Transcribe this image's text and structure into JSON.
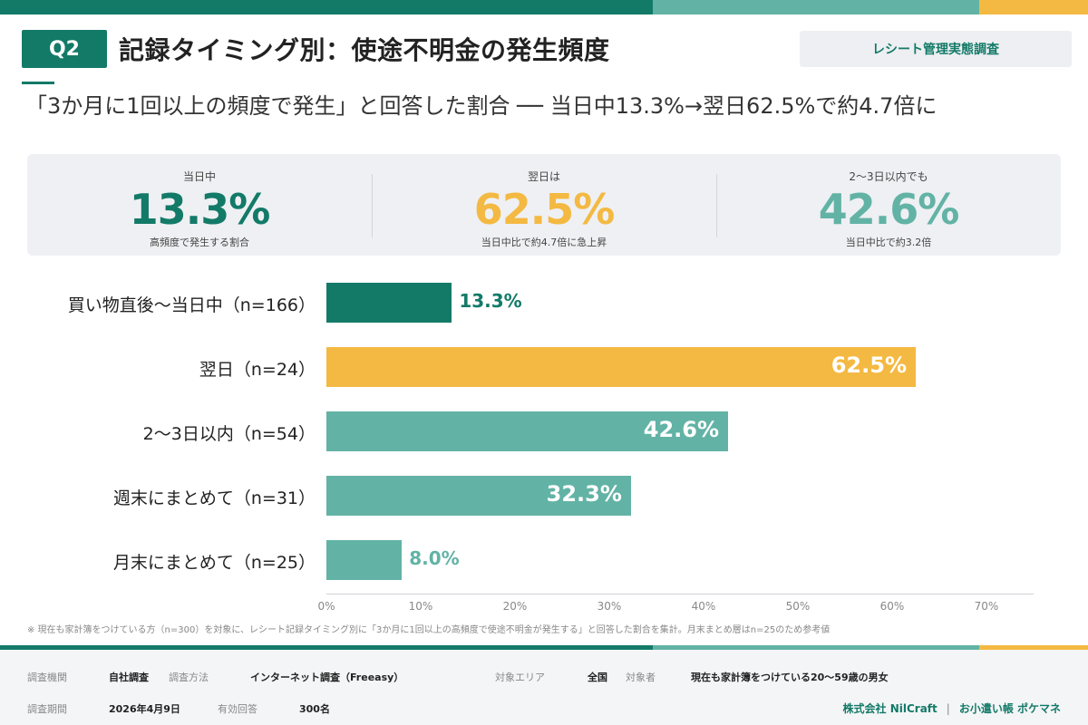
{
  "colors": {
    "primary": "#137a68",
    "accent": "#f4b942",
    "secondary": "#62b3a5",
    "panel": "#eef0f3"
  },
  "header": {
    "badge": "Q2",
    "title": "記録タイミング別：使途不明金の発生頻度",
    "tag": "レシート管理実態調査",
    "subtitle": "「3か月に1回以上の頻度で発生」と回答した割合 ── 当日中13.3%→翌日62.5%で約4.7倍に"
  },
  "stats": [
    {
      "label": "当日中",
      "value": "13.3%",
      "note": "高頻度で発生する割合",
      "color": "#137a68"
    },
    {
      "label": "翌日は",
      "value": "62.5%",
      "note": "当日中比で約4.7倍に急上昇",
      "color": "#f4b942"
    },
    {
      "label": "2〜3日以内でも",
      "value": "42.6%",
      "note": "当日中比で約3.2倍",
      "color": "#62b3a5"
    }
  ],
  "chart_data": {
    "type": "bar",
    "orientation": "horizontal",
    "categories": [
      "買い物直後〜当日中（n=166）",
      "翌日（n=24）",
      "2〜3日以内（n=54）",
      "週末にまとめて（n=31）",
      "月末にまとめて（n=25）"
    ],
    "values": [
      13.3,
      62.5,
      42.6,
      32.3,
      8.0
    ],
    "value_labels": [
      "13.3%",
      "62.5%",
      "42.6%",
      "32.3%",
      "8.0%"
    ],
    "bar_colors": [
      "#137a68",
      "#f4b942",
      "#62b3a5",
      "#62b3a5",
      "#62b3a5"
    ],
    "xlim": [
      0,
      70
    ],
    "xticks": [
      "0%",
      "10%",
      "20%",
      "30%",
      "40%",
      "50%",
      "60%",
      "70%"
    ],
    "grid": false
  },
  "footnote": "※ 現在も家計簿をつけている方（n=300）を対象に、レシート記録タイミング別に「3か月に1回以上の高頻度で使途不明金が発生する」と回答した割合を集計。月末まとめ層はn=25のため参考値",
  "footer": {
    "org_label": "調査機関",
    "org_value": "自社調査",
    "method_label": "調査方法",
    "method_value": "インターネット調査（Freeasy）",
    "area_label": "対象エリア",
    "area_value": "全国",
    "target_label": "対象者",
    "target_value": "現在も家計簿をつけている20〜59歳の男女",
    "period_label": "調査期間",
    "period_value": "2026年4月9日",
    "responses_label": "有効回答",
    "responses_value": "300名",
    "company": "株式会社 NilCraft",
    "separator": "|",
    "app": "お小遣い帳 ポケマネ"
  }
}
